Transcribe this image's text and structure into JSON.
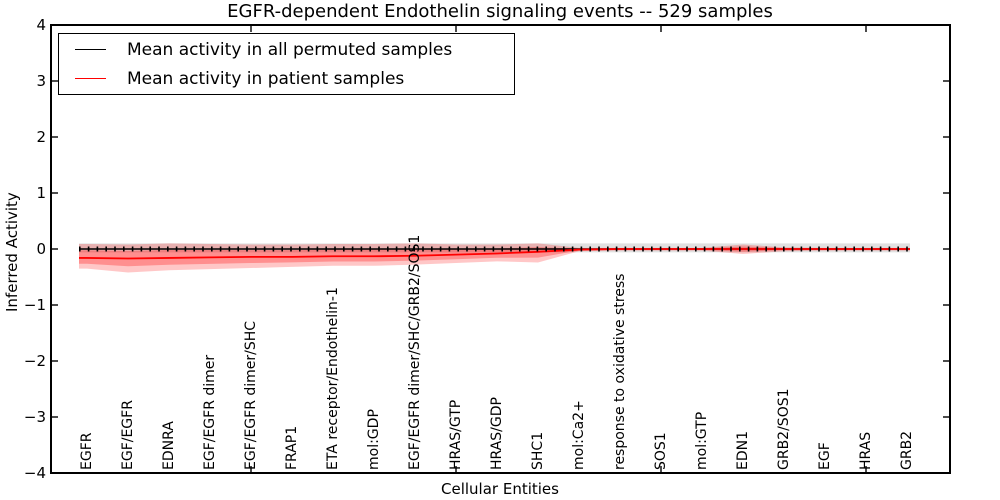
{
  "chart_data": {
    "type": "line",
    "title": "EGFR-dependent Endothelin signaling events -- 529 samples",
    "xlabel": "Cellular Entities",
    "ylabel": "Inferred Activity",
    "ylim": [
      -4,
      4
    ],
    "ytick_values": [
      4,
      3,
      2,
      1,
      0,
      -1,
      -2,
      -3,
      -4
    ],
    "ytick_labels": [
      "4",
      "3",
      "2",
      "1",
      "0",
      "−1",
      "−2",
      "−3",
      "−4"
    ],
    "xticks_major_indices": [
      4,
      9,
      14,
      19
    ],
    "grid": false,
    "legend_position": "upper left",
    "categories": [
      "EGFR",
      "EGF/EGFR",
      "EDNRA",
      "EGF/EGFR dimer",
      "EGF/EGFR dimer/SHC",
      "FRAP1",
      "ETA receptor/Endothelin-1",
      "mol:GDP",
      "EGF/EGFR dimer/SHC/GRB2/SOS1",
      "HRAS/GTP",
      "HRAS/GDP",
      "SHC1",
      "mol:Ca2+",
      "response to oxidative stress",
      "SOS1",
      "mol:GTP",
      "EDN1",
      "GRB2/SOS1",
      "EGF",
      "HRAS",
      "GRB2"
    ],
    "series": [
      {
        "name": "Mean activity in all permuted samples",
        "color": "#000000",
        "values": [
          0,
          0,
          0,
          0,
          0,
          0,
          0,
          0,
          0,
          0,
          0,
          0,
          0,
          0,
          0,
          0,
          0,
          0,
          0,
          0,
          0
        ],
        "band_upper": [
          0.1,
          0.1,
          0.1,
          0.1,
          0.1,
          0.1,
          0.1,
          0.1,
          0.1,
          0.1,
          0.1,
          0.1,
          0.1,
          0.1,
          0.1,
          0.1,
          0.1,
          0.1,
          0.1,
          0.1,
          0.1
        ],
        "band_lower": [
          -0.06,
          -0.06,
          -0.06,
          -0.06,
          -0.06,
          -0.06,
          -0.06,
          -0.06,
          -0.06,
          -0.06,
          -0.06,
          -0.06,
          -0.06,
          -0.06,
          -0.06,
          -0.06,
          -0.06,
          -0.06,
          -0.06,
          -0.06,
          -0.06
        ]
      },
      {
        "name": "Mean activity in patient samples",
        "color": "#ff0000",
        "values": [
          -0.16,
          -0.17,
          -0.16,
          -0.15,
          -0.14,
          -0.14,
          -0.13,
          -0.13,
          -0.12,
          -0.1,
          -0.08,
          -0.05,
          -0.01,
          0,
          0,
          0,
          0,
          0,
          0,
          0,
          0
        ],
        "band_upper": [
          0.09,
          0.08,
          0.1,
          0.09,
          0.08,
          0.08,
          0.09,
          0.09,
          0.1,
          0.08,
          0.08,
          0.1,
          0.02,
          0.02,
          0.02,
          0.02,
          0.08,
          0.03,
          0.02,
          0.02,
          0.02
        ],
        "band_lower": [
          -0.35,
          -0.42,
          -0.38,
          -0.36,
          -0.34,
          -0.32,
          -0.3,
          -0.3,
          -0.28,
          -0.25,
          -0.22,
          -0.24,
          -0.04,
          -0.03,
          -0.03,
          -0.03,
          -0.09,
          -0.04,
          -0.03,
          -0.03,
          -0.03
        ]
      }
    ]
  }
}
